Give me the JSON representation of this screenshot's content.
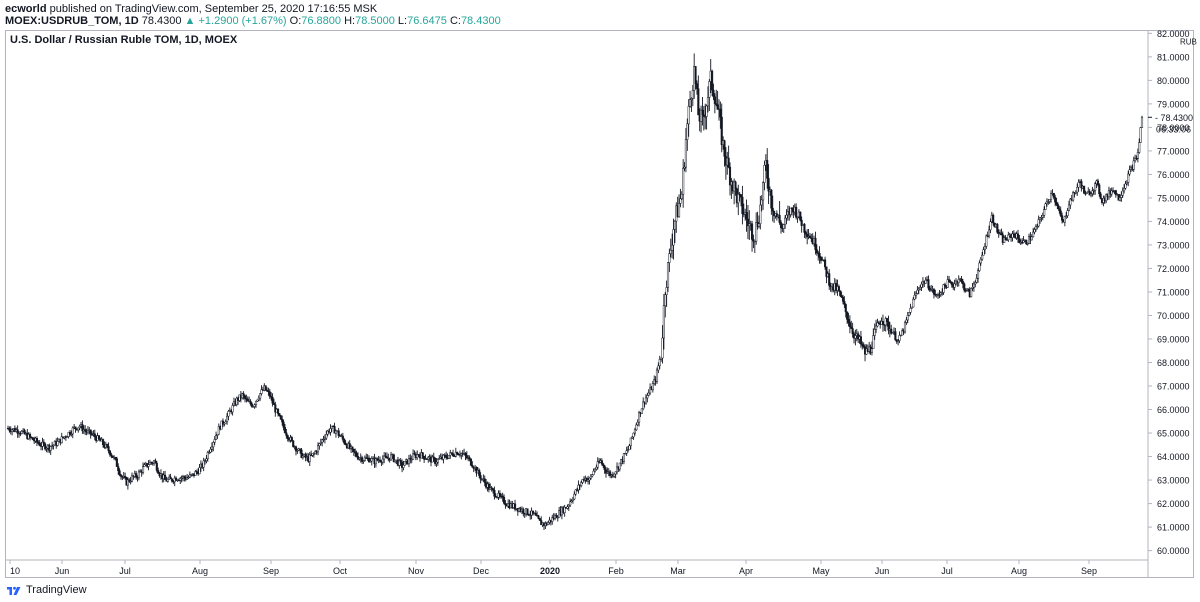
{
  "header": {
    "publisher_user": "ecworld",
    "publisher_text": " published on TradingView.com, September 25, 2020 17:16:55 MSK",
    "symbol": "MOEX:USDRUB_TOM, 1D",
    "last": "78.4300",
    "change": "+1.2900 (+1.67%)",
    "o_label": "O:",
    "o_value": "76.8800",
    "h_label": "H:",
    "h_value": "78.5000",
    "l_label": "L:",
    "l_value": "76.6475",
    "c_label": "C:",
    "c_value": "78.4300"
  },
  "footer": {
    "brand": "TradingView"
  },
  "colors": {
    "candle": "#131722",
    "up_text": "#26a69a",
    "border": "#b2b5be",
    "axis_text": "#131722"
  },
  "chart_data": {
    "type": "candlestick",
    "title": "U.S. Dollar / Russian Ruble TOM, 1D, MOEX",
    "currency_label": "RUB",
    "ylim": [
      59.6,
      82.1
    ],
    "y_ticks": [
      "82.0000",
      "81.0000",
      "80.0000",
      "79.0000",
      "78.0000",
      "77.0000",
      "76.0000",
      "75.0000",
      "74.0000",
      "73.0000",
      "72.0000",
      "71.0000",
      "70.0000",
      "69.0000",
      "68.0000",
      "67.0000",
      "66.0000",
      "65.0000",
      "64.0000",
      "63.0000",
      "62.0000",
      "61.0000",
      "60.0000"
    ],
    "x_ticks": [
      "10",
      "Jun",
      "Jul",
      "Aug",
      "Sep",
      "Oct",
      "Nov",
      "Dec",
      "2020",
      "Feb",
      "Mar",
      "Apr",
      "May",
      "Jun",
      "Jul",
      "Aug",
      "Sep"
    ],
    "bold_x_ticks": [
      "2020"
    ],
    "last_price_label": "78.4300",
    "countdown_label": "06:33:06",
    "close_path": [
      [
        0,
        65.2
      ],
      [
        8,
        65.1
      ],
      [
        16,
        64.8
      ],
      [
        24,
        64.5
      ],
      [
        30,
        64.4
      ],
      [
        36,
        64.6
      ],
      [
        42,
        64.9
      ],
      [
        48,
        65.2
      ],
      [
        52,
        65.3
      ],
      [
        56,
        65.1
      ],
      [
        62,
        64.9
      ],
      [
        68,
        64.6
      ],
      [
        74,
        64.2
      ],
      [
        78,
        63.8
      ],
      [
        82,
        63.2
      ],
      [
        86,
        62.9
      ],
      [
        90,
        63.1
      ],
      [
        94,
        63.2
      ],
      [
        98,
        63.5
      ],
      [
        102,
        63.7
      ],
      [
        106,
        63.8
      ],
      [
        110,
        63.3
      ],
      [
        114,
        63.0
      ],
      [
        118,
        63.0
      ],
      [
        122,
        63.1
      ],
      [
        126,
        63.1
      ],
      [
        130,
        63.1
      ],
      [
        134,
        63.2
      ],
      [
        138,
        63.4
      ],
      [
        142,
        63.7
      ],
      [
        146,
        64.3
      ],
      [
        150,
        64.8
      ],
      [
        154,
        65.3
      ],
      [
        158,
        65.6
      ],
      [
        162,
        66.0
      ],
      [
        166,
        66.4
      ],
      [
        170,
        66.6
      ],
      [
        174,
        66.3
      ],
      [
        178,
        66.2
      ],
      [
        182,
        66.6
      ],
      [
        186,
        66.9
      ],
      [
        190,
        66.6
      ],
      [
        194,
        66.0
      ],
      [
        198,
        65.5
      ],
      [
        202,
        65.0
      ],
      [
        206,
        64.6
      ],
      [
        210,
        64.3
      ],
      [
        214,
        64.0
      ],
      [
        218,
        63.9
      ],
      [
        222,
        64.1
      ],
      [
        226,
        64.5
      ],
      [
        230,
        64.9
      ],
      [
        234,
        65.2
      ],
      [
        238,
        65.1
      ],
      [
        242,
        64.8
      ],
      [
        246,
        64.5
      ],
      [
        250,
        64.2
      ],
      [
        254,
        64.0
      ],
      [
        258,
        63.9
      ],
      [
        262,
        63.9
      ],
      [
        266,
        63.8
      ],
      [
        270,
        63.9
      ],
      [
        274,
        63.9
      ],
      [
        278,
        64.0
      ],
      [
        282,
        63.8
      ],
      [
        286,
        63.6
      ],
      [
        290,
        63.8
      ],
      [
        294,
        64.0
      ],
      [
        298,
        64.1
      ],
      [
        302,
        64.0
      ],
      [
        306,
        63.9
      ],
      [
        310,
        63.8
      ],
      [
        314,
        63.9
      ],
      [
        318,
        64.0
      ],
      [
        322,
        64.1
      ],
      [
        326,
        64.2
      ],
      [
        330,
        64.1
      ],
      [
        334,
        63.9
      ],
      [
        338,
        63.6
      ],
      [
        342,
        63.2
      ],
      [
        346,
        62.9
      ],
      [
        350,
        62.6
      ],
      [
        354,
        62.4
      ],
      [
        358,
        62.2
      ],
      [
        362,
        62.0
      ],
      [
        366,
        61.9
      ],
      [
        370,
        61.8
      ],
      [
        374,
        61.7
      ],
      [
        378,
        61.6
      ],
      [
        382,
        61.5
      ],
      [
        386,
        61.2
      ],
      [
        390,
        61.1
      ],
      [
        394,
        61.3
      ],
      [
        398,
        61.5
      ],
      [
        402,
        61.7
      ],
      [
        406,
        61.9
      ],
      [
        410,
        62.3
      ],
      [
        414,
        62.7
      ],
      [
        418,
        63.1
      ],
      [
        422,
        63.0
      ],
      [
        426,
        63.5
      ],
      [
        430,
        63.8
      ],
      [
        434,
        63.4
      ],
      [
        438,
        63.2
      ],
      [
        442,
        63.5
      ],
      [
        446,
        63.9
      ],
      [
        450,
        64.3
      ],
      [
        454,
        65.0
      ],
      [
        458,
        65.8
      ],
      [
        462,
        66.4
      ],
      [
        466,
        66.8
      ],
      [
        470,
        67.3
      ],
      [
        474,
        68.4
      ],
      [
        477,
        71.2
      ],
      [
        480,
        72.4
      ],
      [
        483,
        73.8
      ],
      [
        486,
        74.5
      ],
      [
        489,
        75.2
      ],
      [
        492,
        77.5
      ],
      [
        495,
        79.2
      ],
      [
        498,
        80.4
      ],
      [
        501,
        78.6
      ],
      [
        504,
        78.2
      ],
      [
        507,
        79.1
      ],
      [
        510,
        80.0
      ],
      [
        513,
        79.4
      ],
      [
        516,
        78.4
      ],
      [
        519,
        77.2
      ],
      [
        522,
        76.4
      ],
      [
        526,
        75.6
      ],
      [
        530,
        74.9
      ],
      [
        534,
        74.4
      ],
      [
        538,
        73.8
      ],
      [
        542,
        73.5
      ],
      [
        546,
        74.6
      ],
      [
        550,
        76.4
      ],
      [
        554,
        74.9
      ],
      [
        558,
        74.2
      ],
      [
        562,
        73.7
      ],
      [
        566,
        74.3
      ],
      [
        570,
        74.6
      ],
      [
        574,
        74.2
      ],
      [
        578,
        73.7
      ],
      [
        582,
        73.4
      ],
      [
        586,
        73.0
      ],
      [
        590,
        72.5
      ],
      [
        594,
        71.8
      ],
      [
        598,
        71.2
      ],
      [
        602,
        71.1
      ],
      [
        606,
        70.5
      ],
      [
        610,
        69.8
      ],
      [
        614,
        69.2
      ],
      [
        618,
        68.9
      ],
      [
        622,
        68.4
      ],
      [
        626,
        68.6
      ],
      [
        630,
        69.4
      ],
      [
        634,
        69.9
      ],
      [
        638,
        69.6
      ],
      [
        642,
        69.3
      ],
      [
        646,
        68.9
      ],
      [
        650,
        69.4
      ],
      [
        654,
        70.1
      ],
      [
        658,
        70.8
      ],
      [
        662,
        71.3
      ],
      [
        666,
        71.5
      ],
      [
        670,
        71.1
      ],
      [
        674,
        70.8
      ],
      [
        678,
        71.1
      ],
      [
        682,
        71.4
      ],
      [
        686,
        71.3
      ],
      [
        690,
        71.6
      ],
      [
        694,
        71.2
      ],
      [
        698,
        70.9
      ],
      [
        702,
        71.5
      ],
      [
        706,
        72.3
      ],
      [
        710,
        73.3
      ],
      [
        714,
        74.2
      ],
      [
        718,
        73.6
      ],
      [
        722,
        73.2
      ],
      [
        726,
        73.3
      ],
      [
        730,
        73.5
      ],
      [
        734,
        73.2
      ],
      [
        738,
        73.1
      ],
      [
        742,
        73.3
      ],
      [
        746,
        73.7
      ],
      [
        750,
        74.2
      ],
      [
        754,
        74.8
      ],
      [
        758,
        75.3
      ],
      [
        762,
        74.5
      ],
      [
        766,
        73.9
      ],
      [
        770,
        74.8
      ],
      [
        774,
        75.2
      ],
      [
        778,
        75.7
      ],
      [
        782,
        75.1
      ],
      [
        786,
        75.3
      ],
      [
        790,
        75.6
      ],
      [
        794,
        74.9
      ],
      [
        798,
        75.1
      ],
      [
        802,
        75.4
      ],
      [
        806,
        75.0
      ],
      [
        810,
        75.5
      ],
      [
        814,
        76.1
      ],
      [
        818,
        76.6
      ],
      [
        820,
        76.9
      ],
      [
        823,
        78.43
      ]
    ]
  }
}
